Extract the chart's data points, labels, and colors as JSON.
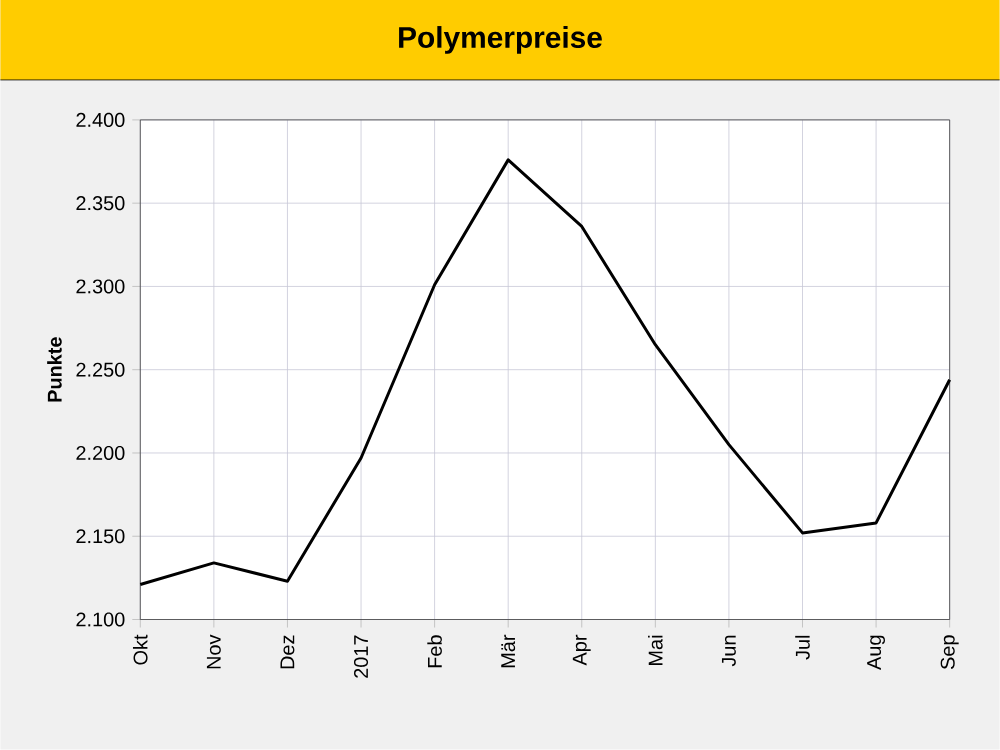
{
  "chart_data": {
    "type": "line",
    "title": "Polymerpreise",
    "ylabel": "Punkte",
    "categories": [
      "Okt",
      "Nov",
      "Dez",
      "2017",
      "Feb",
      "Mär",
      "Apr",
      "Mai",
      "Jun",
      "Jul",
      "Aug",
      "Sep"
    ],
    "series": [
      {
        "color": "#000000",
        "values": [
          2121,
          2134,
          2123,
          2197,
          2301,
          2376,
          2336,
          2265,
          2205,
          2152,
          2158,
          2244
        ]
      }
    ],
    "ylim": [
      2100,
      2400
    ],
    "yticks": [
      {
        "value": 2100,
        "label": "2.100"
      },
      {
        "value": 2150,
        "label": "2.150"
      },
      {
        "value": 2200,
        "label": "2.200"
      },
      {
        "value": 2250,
        "label": "2.250"
      },
      {
        "value": 2300,
        "label": "2.300"
      },
      {
        "value": 2350,
        "label": "2.350"
      },
      {
        "value": 2400,
        "label": "2.400"
      }
    ],
    "grid": true,
    "marker": "none",
    "line_style": "solid"
  }
}
